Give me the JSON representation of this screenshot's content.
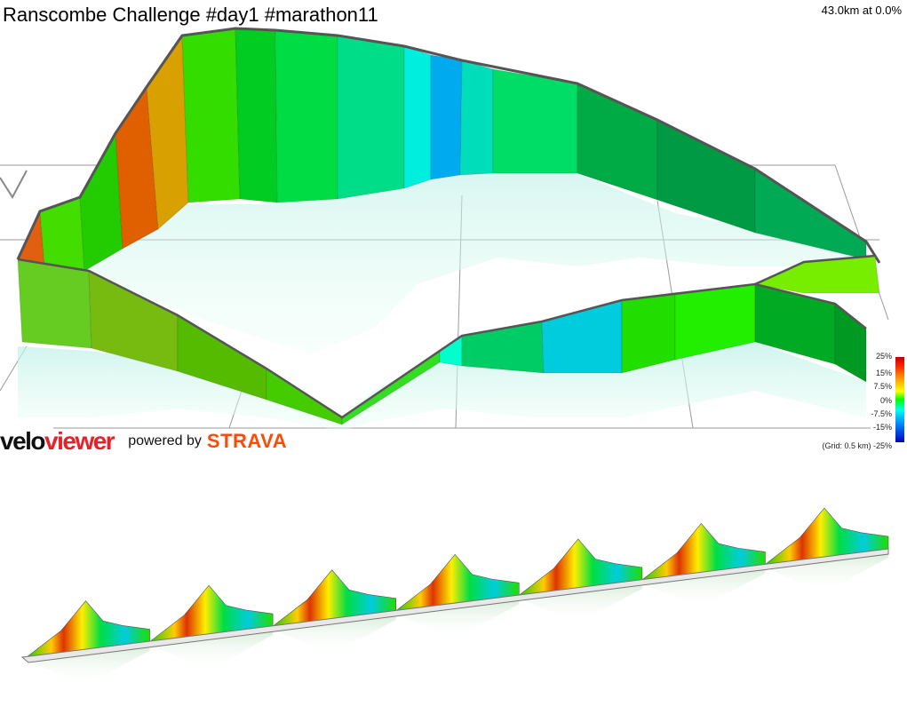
{
  "header": {
    "title": "Ranscombe Challenge #day1 #marathon11",
    "readout": "43.0km at 0.0%"
  },
  "branding": {
    "velo": "velo",
    "viewer": "viewer",
    "powered_by": "powered by",
    "strava": "STRAVA"
  },
  "legend": {
    "labels": [
      "25%",
      "15%",
      "7.5%",
      "0%",
      "-7.5%",
      "-15%",
      "-25%"
    ],
    "grid_note": "(Grid: 0.5 km)"
  },
  "colors": {
    "velo_black": "#111111",
    "viewer_red": "#e8202a",
    "strava_orange": "#fc4c02",
    "gradient_high": "#c00000",
    "gradient_flat": "#00ff00",
    "gradient_low": "#0000c0"
  }
}
